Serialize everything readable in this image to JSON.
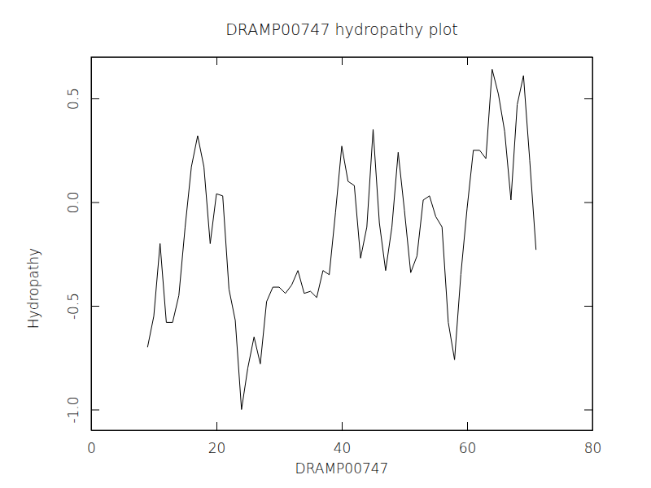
{
  "chart_data": {
    "type": "line",
    "title": "DRAMP00747 hydropathy plot",
    "x_label": "DRAMP00747",
    "y_label": "Hydropathy",
    "x": [
      9,
      10,
      11,
      12,
      13,
      14,
      15,
      16,
      17,
      18,
      19,
      20,
      21,
      22,
      23,
      24,
      25,
      26,
      27,
      28,
      29,
      30,
      31,
      32,
      33,
      34,
      35,
      36,
      37,
      38,
      39,
      40,
      41,
      42,
      43,
      44,
      45,
      46,
      47,
      48,
      49,
      50,
      51,
      52,
      53,
      54,
      55,
      56,
      57,
      58,
      59,
      60,
      61,
      62,
      63,
      64,
      65,
      66,
      67,
      68,
      69,
      70,
      71
    ],
    "values": [
      -0.7,
      -0.55,
      -0.2,
      -0.58,
      -0.58,
      -0.45,
      -0.12,
      0.17,
      0.32,
      0.17,
      -0.2,
      0.04,
      0.03,
      -0.42,
      -0.57,
      -1.0,
      -0.8,
      -0.65,
      -0.78,
      -0.48,
      -0.41,
      -0.41,
      -0.44,
      -0.4,
      -0.33,
      -0.44,
      -0.43,
      -0.46,
      -0.33,
      -0.35,
      -0.05,
      0.27,
      0.1,
      0.08,
      -0.27,
      -0.12,
      0.35,
      -0.1,
      -0.33,
      -0.12,
      0.24,
      -0.04,
      -0.34,
      -0.26,
      0.01,
      0.03,
      -0.07,
      -0.12,
      -0.58,
      -0.76,
      -0.35,
      -0.03,
      0.25,
      0.25,
      0.21,
      0.64,
      0.52,
      0.34,
      0.01,
      0.47,
      0.61,
      0.2,
      -0.23
    ],
    "color": "#000000",
    "xlim": [
      0,
      80
    ],
    "xticks": [
      0,
      20,
      40,
      60,
      80
    ],
    "ylim": [
      -1.1,
      0.7
    ],
    "yticks": [
      {
        "value": -1.0,
        "label": "-1.0"
      },
      -0.5,
      {
        "value": 0.0,
        "label": "0.0"
      },
      0.5
    ],
    "grid": false
  }
}
